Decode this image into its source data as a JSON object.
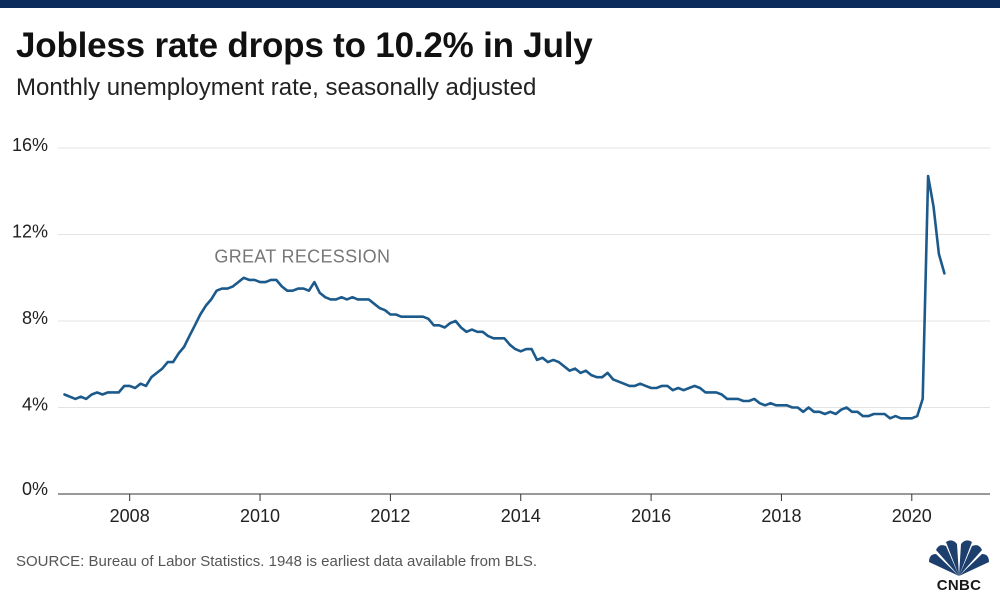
{
  "header": {
    "title": "Jobless rate drops to 10.2% in July",
    "subtitle": "Monthly unemployment rate, seasonally adjusted"
  },
  "footer": {
    "source": "SOURCE: Bureau of Labor Statistics. 1948 is earliest data available from BLS.",
    "logo_text": "CNBC"
  },
  "colors": {
    "top_bar": "#0a2b5c",
    "line": "#1c5a8c",
    "gridline": "#e3e3e3",
    "annotation": "#777777"
  },
  "chart_data": {
    "type": "line",
    "title": "Jobless rate drops to 10.2% in July",
    "subtitle": "Monthly unemployment rate, seasonally adjusted",
    "xlabel": "",
    "ylabel": "",
    "start": "2007-01",
    "ylim": [
      0,
      16
    ],
    "xlim": [
      2006.9,
      2021.2
    ],
    "y_ticks": [
      {
        "value": 0,
        "label": "0%"
      },
      {
        "value": 4,
        "label": "4%"
      },
      {
        "value": 8,
        "label": "8%"
      },
      {
        "value": 12,
        "label": "12%"
      },
      {
        "value": 16,
        "label": "16%"
      }
    ],
    "x_ticks": [
      {
        "value": 2008,
        "label": "2008"
      },
      {
        "value": 2010,
        "label": "2010"
      },
      {
        "value": 2012,
        "label": "2012"
      },
      {
        "value": 2014,
        "label": "2014"
      },
      {
        "value": 2016,
        "label": "2016"
      },
      {
        "value": 2018,
        "label": "2018"
      },
      {
        "value": 2020,
        "label": "2020"
      }
    ],
    "grid": true,
    "legend": "none",
    "annotations": [
      {
        "text": "GREAT RECESSION",
        "x": 2009.3,
        "y": 10.7
      }
    ],
    "series": [
      {
        "name": "",
        "values": [
          4.6,
          4.5,
          4.4,
          4.5,
          4.4,
          4.6,
          4.7,
          4.6,
          4.7,
          4.7,
          4.7,
          5.0,
          5.0,
          4.9,
          5.1,
          5.0,
          5.4,
          5.6,
          5.8,
          6.1,
          6.1,
          6.5,
          6.8,
          7.3,
          7.8,
          8.3,
          8.7,
          9.0,
          9.4,
          9.5,
          9.5,
          9.6,
          9.8,
          10.0,
          9.9,
          9.9,
          9.8,
          9.8,
          9.9,
          9.9,
          9.6,
          9.4,
          9.4,
          9.5,
          9.5,
          9.4,
          9.8,
          9.3,
          9.1,
          9.0,
          9.0,
          9.1,
          9.0,
          9.1,
          9.0,
          9.0,
          9.0,
          8.8,
          8.6,
          8.5,
          8.3,
          8.3,
          8.2,
          8.2,
          8.2,
          8.2,
          8.2,
          8.1,
          7.8,
          7.8,
          7.7,
          7.9,
          8.0,
          7.7,
          7.5,
          7.6,
          7.5,
          7.5,
          7.3,
          7.2,
          7.2,
          7.2,
          6.9,
          6.7,
          6.6,
          6.7,
          6.7,
          6.2,
          6.3,
          6.1,
          6.2,
          6.1,
          5.9,
          5.7,
          5.8,
          5.6,
          5.7,
          5.5,
          5.4,
          5.4,
          5.6,
          5.3,
          5.2,
          5.1,
          5.0,
          5.0,
          5.1,
          5.0,
          4.9,
          4.9,
          5.0,
          5.0,
          4.8,
          4.9,
          4.8,
          4.9,
          5.0,
          4.9,
          4.7,
          4.7,
          4.7,
          4.6,
          4.4,
          4.4,
          4.4,
          4.3,
          4.3,
          4.4,
          4.2,
          4.1,
          4.2,
          4.1,
          4.1,
          4.1,
          4.0,
          4.0,
          3.8,
          4.0,
          3.8,
          3.8,
          3.7,
          3.8,
          3.7,
          3.9,
          4.0,
          3.8,
          3.8,
          3.6,
          3.6,
          3.7,
          3.7,
          3.7,
          3.5,
          3.6,
          3.5,
          3.5,
          3.5,
          3.6,
          4.4,
          14.7,
          13.3,
          11.1,
          10.2
        ]
      }
    ]
  }
}
